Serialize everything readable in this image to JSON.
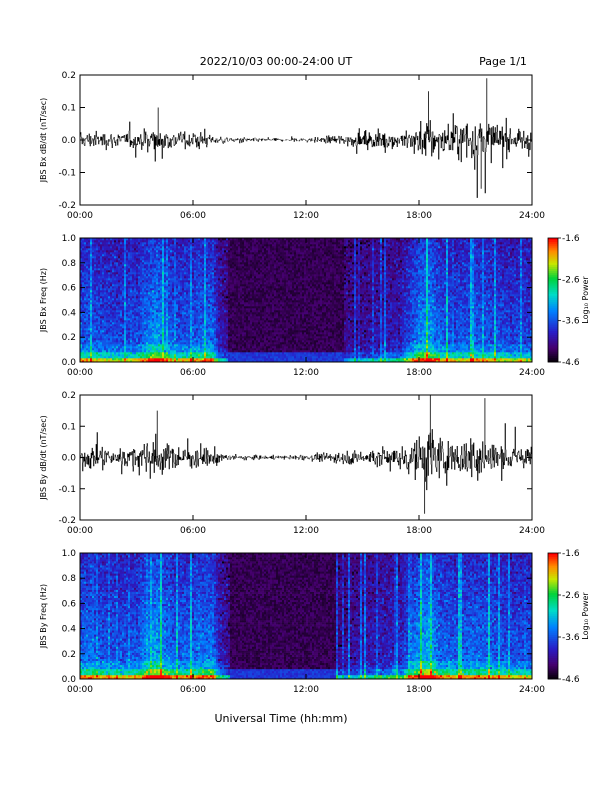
{
  "header": {
    "title": "2022/10/03  00:00-24:00 UT",
    "page": "Page 1/1"
  },
  "xlabel": "Universal Time (hh:mm)",
  "chart_data": [
    {
      "type": "line",
      "ylabel": "JBS Bx dB/dt (nT/sec)",
      "xlim": [
        0,
        24
      ],
      "ylim": [
        -0.2,
        0.2
      ],
      "x_ticks": [
        "00:00",
        "06:00",
        "12:00",
        "18:00",
        "24:00"
      ],
      "y_ticks": [
        "0.2",
        "0.1",
        "0.0",
        "-0.1",
        "-0.2"
      ],
      "y_tick_values": [
        0.2,
        0.1,
        0.0,
        -0.1,
        -0.2
      ],
      "envelope": {
        "hours": [
          0,
          1,
          2,
          3,
          4,
          4.5,
          5,
          6,
          7,
          7.5,
          8,
          9,
          10,
          11,
          12,
          13,
          14,
          15,
          16,
          17,
          18,
          18.5,
          19,
          20,
          21,
          21.5,
          22,
          23,
          24
        ],
        "amplitude": [
          0.03,
          0.03,
          0.025,
          0.03,
          0.06,
          0.04,
          0.03,
          0.03,
          0.02,
          0.015,
          0.01,
          0.008,
          0.006,
          0.006,
          0.008,
          0.012,
          0.02,
          0.025,
          0.03,
          0.03,
          0.06,
          0.08,
          0.06,
          0.06,
          0.1,
          0.08,
          0.06,
          0.04,
          0.04
        ]
      },
      "peaks": [
        {
          "x": 4.15,
          "y": 0.1
        },
        {
          "x": 18.5,
          "y": 0.15
        },
        {
          "x": 21.6,
          "y": 0.19
        },
        {
          "x": 21.3,
          "y": -0.15
        }
      ]
    },
    {
      "type": "heatmap",
      "ylabel": "JBS Bx Freq (Hz)",
      "xlim": [
        0,
        24
      ],
      "ylim": [
        0,
        1.0
      ],
      "x_ticks": [
        "00:00",
        "06:00",
        "12:00",
        "18:00",
        "24:00"
      ],
      "y_ticks": [
        "1.0",
        "0.8",
        "0.6",
        "0.4",
        "0.2",
        "0.0"
      ],
      "y_tick_values": [
        1.0,
        0.8,
        0.6,
        0.4,
        0.2,
        0.0
      ],
      "colorbar": {
        "label": "Log₁₀ Power",
        "ticks": [
          "-1.6",
          "-2.6",
          "-3.6",
          "-4.6"
        ],
        "tick_values": [
          -1.6,
          -2.6,
          -3.6,
          -4.6
        ],
        "range": [
          -4.6,
          -1.6
        ]
      },
      "activity": {
        "hours": [
          0,
          1,
          2,
          3,
          4,
          4.5,
          5,
          6,
          7,
          7.3,
          8,
          9,
          10,
          11,
          12,
          13,
          14,
          15,
          16,
          17,
          18,
          18.5,
          19,
          20,
          21,
          22,
          23,
          24
        ],
        "level": [
          0.55,
          0.5,
          0.45,
          0.5,
          0.75,
          0.6,
          0.5,
          0.55,
          0.6,
          0.3,
          0.1,
          0.05,
          0.03,
          0.03,
          0.06,
          0.1,
          0.15,
          0.2,
          0.25,
          0.3,
          0.7,
          0.75,
          0.55,
          0.5,
          0.55,
          0.5,
          0.45,
          0.45
        ]
      }
    },
    {
      "type": "line",
      "ylabel": "JBS By dB/dt (nT/sec)",
      "xlim": [
        0,
        24
      ],
      "ylim": [
        -0.2,
        0.2
      ],
      "x_ticks": [
        "00:00",
        "06:00",
        "12:00",
        "18:00",
        "24:00"
      ],
      "y_ticks": [
        "0.2",
        "0.1",
        "0.0",
        "-0.1",
        "-0.2"
      ],
      "y_tick_values": [
        0.2,
        0.1,
        0.0,
        -0.1,
        -0.2
      ],
      "envelope": {
        "hours": [
          0,
          1,
          2,
          3,
          4,
          4.5,
          5,
          6,
          7,
          7.5,
          8,
          9,
          10,
          11,
          12,
          13,
          14,
          15,
          16,
          17,
          18,
          18.5,
          19,
          20,
          21,
          21.5,
          22,
          23,
          24
        ],
        "amplitude": [
          0.035,
          0.04,
          0.035,
          0.04,
          0.08,
          0.05,
          0.04,
          0.045,
          0.035,
          0.02,
          0.012,
          0.01,
          0.007,
          0.007,
          0.01,
          0.015,
          0.025,
          0.03,
          0.04,
          0.045,
          0.08,
          0.12,
          0.08,
          0.07,
          0.09,
          0.08,
          0.06,
          0.045,
          0.04
        ]
      },
      "peaks": [
        {
          "x": 4.1,
          "y": 0.15
        },
        {
          "x": 18.6,
          "y": 0.2
        },
        {
          "x": 21.5,
          "y": 0.19
        },
        {
          "x": 18.3,
          "y": -0.18
        }
      ]
    },
    {
      "type": "heatmap",
      "ylabel": "JBS By Freq (Hz)",
      "xlim": [
        0,
        24
      ],
      "ylim": [
        0,
        1.0
      ],
      "x_ticks": [
        "00:00",
        "06:00",
        "12:00",
        "18:00",
        "24:00"
      ],
      "y_ticks": [
        "1.0",
        "0.8",
        "0.6",
        "0.4",
        "0.2",
        "0.0"
      ],
      "y_tick_values": [
        1.0,
        0.8,
        0.6,
        0.4,
        0.2,
        0.0
      ],
      "colorbar": {
        "label": "Log₁₀ Power",
        "ticks": [
          "-1.6",
          "-2.6",
          "-3.6",
          "-4.6"
        ],
        "tick_values": [
          -1.6,
          -2.6,
          -3.6,
          -4.6
        ],
        "range": [
          -4.6,
          -1.6
        ]
      },
      "activity": {
        "hours": [
          0,
          1,
          2,
          3,
          4,
          4.5,
          5,
          6,
          7,
          7.3,
          8,
          9,
          10,
          11,
          12,
          13,
          14,
          15,
          16,
          17,
          18,
          18.5,
          19,
          20,
          21,
          22,
          23,
          24
        ],
        "level": [
          0.6,
          0.55,
          0.5,
          0.55,
          0.8,
          0.65,
          0.55,
          0.6,
          0.65,
          0.35,
          0.12,
          0.06,
          0.04,
          0.04,
          0.08,
          0.12,
          0.18,
          0.25,
          0.3,
          0.35,
          0.75,
          0.8,
          0.6,
          0.55,
          0.6,
          0.55,
          0.5,
          0.5
        ]
      }
    }
  ]
}
